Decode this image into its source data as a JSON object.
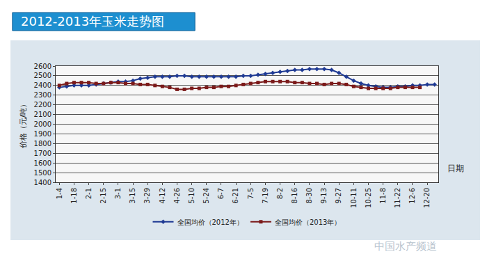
{
  "chart_data": {
    "type": "line",
    "title": "2012-2013年玉米走势图",
    "y_label": "价格（元/吨）",
    "x_label": "日期",
    "categories": [
      "1-4",
      null,
      "1-18",
      null,
      "2-1",
      null,
      "2-15",
      null,
      "3-1",
      null,
      "3-15",
      null,
      "3-29",
      null,
      "4-12",
      null,
      "4-26",
      null,
      "5-10",
      null,
      "5-24",
      null,
      "6-7",
      null,
      "6-21",
      null,
      "7-5",
      null,
      "7-19",
      null,
      "8-2",
      null,
      "8-16",
      null,
      "8-30",
      null,
      "9-13",
      null,
      "9-27",
      null,
      "10-11",
      null,
      "10-25",
      null,
      "11-8",
      null,
      "11-22",
      null,
      "12-6",
      null,
      "12-20",
      null
    ],
    "series": [
      {
        "name": "全国均价（2012年）",
        "color": "#1f3a93",
        "marker": "diamond",
        "line_style": "solid",
        "values": [
          2380,
          2390,
          2400,
          2400,
          2400,
          2410,
          2420,
          2430,
          2440,
          2440,
          2450,
          2470,
          2480,
          2490,
          2490,
          2490,
          2500,
          2500,
          2490,
          2490,
          2490,
          2490,
          2490,
          2490,
          2490,
          2500,
          2500,
          2510,
          2520,
          2530,
          2540,
          2550,
          2560,
          2560,
          2570,
          2570,
          2570,
          2560,
          2530,
          2490,
          2450,
          2420,
          2400,
          2390,
          2380,
          2380,
          2390,
          2390,
          2400,
          2400,
          2410,
          2410
        ]
      },
      {
        "name": "全国均价（2013年）",
        "color": "#7b1a1a",
        "marker": "square",
        "line_style": "solid",
        "values": [
          2400,
          2420,
          2430,
          2430,
          2430,
          2420,
          2420,
          2430,
          2430,
          2420,
          2420,
          2410,
          2410,
          2400,
          2390,
          2380,
          2360,
          2360,
          2370,
          2370,
          2380,
          2380,
          2390,
          2390,
          2400,
          2410,
          2420,
          2430,
          2440,
          2440,
          2440,
          2440,
          2430,
          2430,
          2420,
          2420,
          2410,
          2420,
          2420,
          2410,
          2390,
          2380,
          2370,
          2370,
          2370,
          2370,
          2380,
          2380,
          2380,
          2380,
          null,
          null
        ]
      }
    ],
    "ylim": [
      1400,
      2600
    ],
    "yticks": [
      1400,
      1500,
      1600,
      1700,
      1800,
      1900,
      2000,
      2100,
      2200,
      2300,
      2400,
      2500,
      2600
    ],
    "grid": true,
    "legend": "bottom",
    "annotations": [
      "中国水产频道"
    ]
  }
}
